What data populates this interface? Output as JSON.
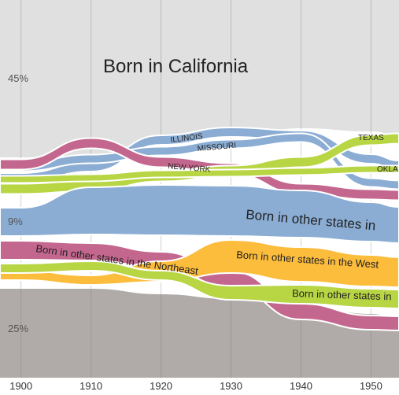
{
  "chart_data": {
    "type": "area",
    "title": "",
    "xlabel": "",
    "ylabel": "",
    "x_ticks": [
      "1900",
      "1910",
      "1920",
      "1930",
      "1940",
      "1950"
    ],
    "xlim": [
      1897,
      1954
    ],
    "percent_labels": [
      "45%",
      "9%",
      "25%"
    ],
    "grid": "vertical",
    "colors": {
      "california": "#e0e0e0",
      "blue": "#8badd4",
      "pink": "#c4678e",
      "green": "#b8d544",
      "orange": "#fcbc3c",
      "gray": "#b0aba9"
    },
    "series": [
      {
        "name": "Born in California",
        "color": "#e0e0e0"
      },
      {
        "name": "ILLINOIS",
        "color": "#8badd4"
      },
      {
        "name": "MISSOURI",
        "color": "#8badd4"
      },
      {
        "name": "NEW YORK",
        "color": "#c4678e"
      },
      {
        "name": "TEXAS",
        "color": "#b8d544"
      },
      {
        "name": "OKLA",
        "color": "#b8d544"
      },
      {
        "name": "Born in other states in",
        "color": "#8badd4"
      },
      {
        "name": "Born in other states in the Northeast",
        "color": "#c4678e"
      },
      {
        "name": "Born in other states in the West",
        "color": "#fcbc3c"
      },
      {
        "name": "Born in other states in",
        "color": "#b8d544"
      }
    ]
  }
}
